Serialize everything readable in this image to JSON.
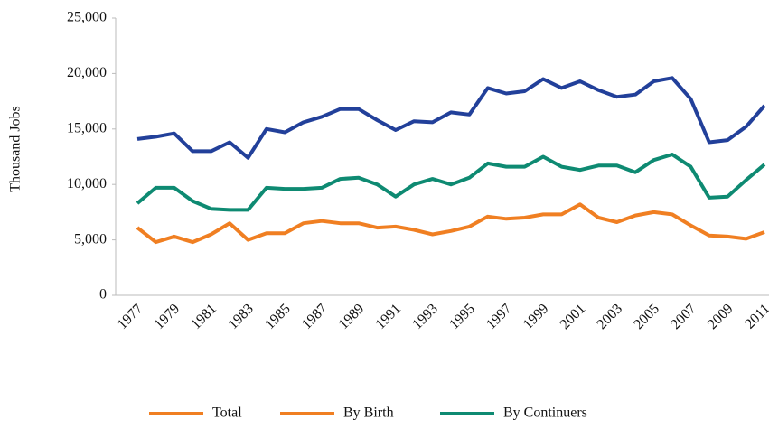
{
  "chart_data": {
    "type": "line",
    "ylabel": "Thousand Jobs",
    "categories": [
      "1977",
      null,
      "1979",
      null,
      "1981",
      null,
      "1983",
      null,
      "1985",
      null,
      "1987",
      null,
      "1989",
      null,
      "1991",
      null,
      "1993",
      null,
      "1995",
      null,
      "1997",
      null,
      "1999",
      null,
      "2001",
      null,
      "2003",
      null,
      "2005",
      null,
      "2007",
      null,
      "2009",
      null,
      "2011"
    ],
    "series": [
      {
        "name": "Total",
        "color": "#22409a",
        "legend_color": "#f07f22",
        "values": [
          14100,
          14300,
          14600,
          13000,
          13000,
          13800,
          12400,
          15000,
          14700,
          15600,
          16100,
          16800,
          16800,
          15800,
          14900,
          15700,
          15600,
          16500,
          16300,
          18700,
          18200,
          18400,
          19500,
          18700,
          19300,
          18500,
          17900,
          18100,
          19300,
          19600,
          17700,
          13800,
          14000,
          15200,
          17100
        ]
      },
      {
        "name": "By Birth",
        "color": "#f07f22",
        "legend_color": "#f07f22",
        "values": [
          6100,
          4800,
          5300,
          4800,
          5500,
          6500,
          5000,
          5600,
          5600,
          6500,
          6700,
          6500,
          6500,
          6100,
          6200,
          5900,
          5500,
          5800,
          6200,
          7100,
          6900,
          7000,
          7300,
          7300,
          8200,
          7000,
          6600,
          7200,
          7500,
          7300,
          6300,
          5400,
          5300,
          5100,
          5700
        ]
      },
      {
        "name": "By Continuers",
        "color": "#0e8a72",
        "legend_color": "#0e8a72",
        "values": [
          8300,
          9700,
          9700,
          8500,
          7800,
          7700,
          7700,
          9700,
          9600,
          9600,
          9700,
          10500,
          10600,
          10000,
          8900,
          10000,
          10500,
          10000,
          10600,
          11900,
          11600,
          11600,
          12500,
          11600,
          11300,
          11700,
          11700,
          11100,
          12200,
          12700,
          11600,
          8800,
          8900,
          10400,
          11800
        ]
      }
    ],
    "ylim": [
      0,
      25000
    ],
    "yticks": [
      {
        "value": 0,
        "label": "0"
      },
      {
        "value": 5000,
        "label": "5,000"
      },
      {
        "value": 10000,
        "label": "10,000"
      },
      {
        "value": 15000,
        "label": "15,000"
      },
      {
        "value": 20000,
        "label": "20,000"
      },
      {
        "value": 25000,
        "label": "25,000"
      }
    ],
    "legend": "bottom"
  }
}
